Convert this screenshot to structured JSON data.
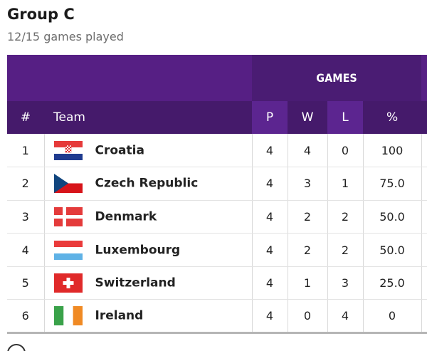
{
  "group": {
    "title": "Group C",
    "subtitle": "12/15 games played"
  },
  "table": {
    "super_header": "GAMES",
    "headers": {
      "rank": "#",
      "team": "Team",
      "played": "P",
      "won": "W",
      "lost": "L",
      "pct": "%"
    },
    "rows": [
      {
        "rank": "1",
        "team": "Croatia",
        "flag": "croatia-flag-icon",
        "played": "4",
        "won": "4",
        "lost": "0",
        "pct": "100"
      },
      {
        "rank": "2",
        "team": "Czech Republic",
        "flag": "czech-republic-flag-icon",
        "played": "4",
        "won": "3",
        "lost": "1",
        "pct": "75.0"
      },
      {
        "rank": "3",
        "team": "Denmark",
        "flag": "denmark-flag-icon",
        "played": "4",
        "won": "2",
        "lost": "2",
        "pct": "50.0"
      },
      {
        "rank": "4",
        "team": "Luxembourg",
        "flag": "luxembourg-flag-icon",
        "played": "4",
        "won": "2",
        "lost": "2",
        "pct": "50.0"
      },
      {
        "rank": "5",
        "team": "Switzerland",
        "flag": "switzerland-flag-icon",
        "played": "4",
        "won": "1",
        "lost": "3",
        "pct": "25.0"
      },
      {
        "rank": "6",
        "team": "Ireland",
        "flag": "ireland-flag-icon",
        "played": "4",
        "won": "0",
        "lost": "4",
        "pct": "0"
      }
    ]
  },
  "colors": {
    "header_purple_dark": "#451a6b",
    "header_purple_light": "#5c2590"
  },
  "icons": {
    "info": "info-icon"
  }
}
